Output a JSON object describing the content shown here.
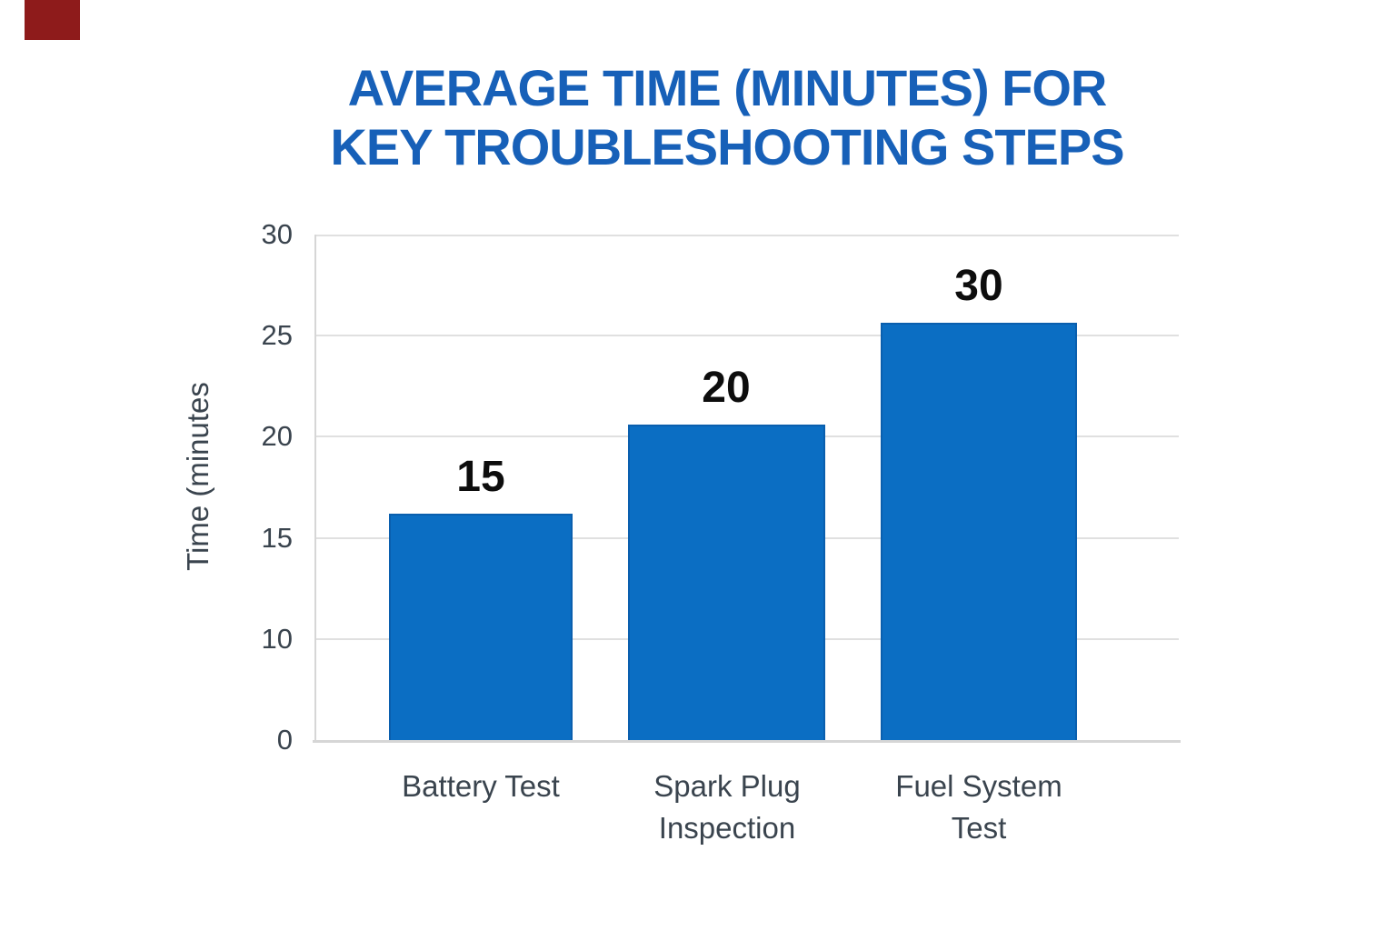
{
  "colors": {
    "background": "#ffffff",
    "title": "#1760b8",
    "bar": "#0b6ec3",
    "bar_border": "#0a5fae",
    "axis_text": "#3a444e",
    "value_label": "#0d0d0d",
    "gridline": "#e0e0e0",
    "axis_line": "#d6d6d6",
    "corner_marker": "#8e1b1b"
  },
  "chart_data": {
    "type": "bar",
    "title": "AVERAGE TIME (MINUTES) FOR KEY TROUBLESHOOTING STEPS",
    "title_lines": [
      "AVERAGE TIME (MINUTES) FOR",
      "KEY TROUBLESHOOTING STEPS"
    ],
    "ylabel": "Time (minutes",
    "xlabel": "",
    "categories": [
      "Battery Test",
      "Spark Plug\nInspection",
      "Fuel System\nTest"
    ],
    "values": [
      15,
      20,
      30
    ],
    "value_labels": [
      "15",
      "20",
      "30"
    ],
    "yticks": [
      "30",
      "25",
      "20",
      "15",
      "10",
      "0"
    ],
    "ylim": [
      0,
      30
    ],
    "grid": "horizontal-only",
    "legend": "none",
    "bar_color": "#0b6ec3",
    "rendered_bar_tops_axis_units": [
      16.3,
      20.6,
      25.7
    ]
  }
}
